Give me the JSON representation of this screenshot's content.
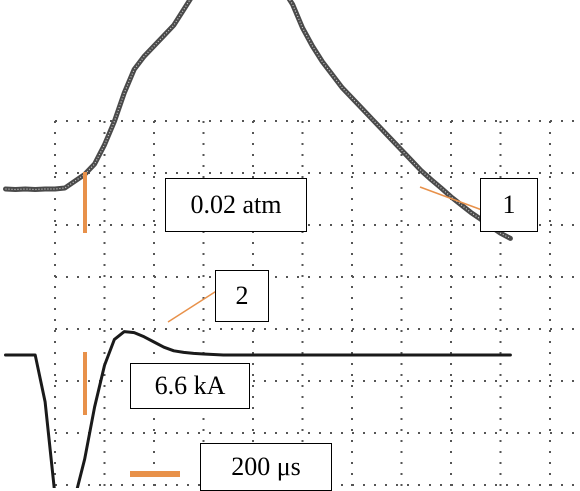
{
  "chart_data": {
    "type": "line",
    "title": "",
    "xlabel": "",
    "ylabel": "",
    "grid": true,
    "grid_style": "dotted",
    "x_divisions": 10,
    "y_divisions": 7,
    "x": [
      -1.0,
      -0.8,
      -0.6,
      -0.4,
      -0.2,
      0.0,
      0.2,
      0.4,
      0.6,
      0.8,
      1.0,
      1.2,
      1.4,
      1.6,
      1.8,
      2.0,
      2.2,
      2.4,
      2.6,
      2.8,
      3.0,
      3.2,
      3.4,
      3.6,
      3.8,
      4.0,
      4.2,
      4.4,
      4.6,
      4.8,
      5.0,
      5.2,
      5.4,
      5.6,
      5.8,
      6.0,
      6.2,
      6.4,
      6.6,
      6.8,
      7.0,
      7.2,
      7.4,
      7.6,
      7.8,
      8.0,
      8.2,
      8.4,
      8.6,
      8.8,
      9.0,
      9.2
    ],
    "series": [
      {
        "id": "1",
        "values": [
          1.0,
          0.99,
          1.0,
          0.99,
          1.0,
          1.0,
          1.02,
          1.15,
          1.28,
          1.48,
          1.85,
          2.3,
          2.85,
          3.3,
          3.55,
          3.75,
          3.95,
          4.15,
          4.45,
          4.75,
          5.1,
          5.55,
          5.3,
          4.95,
          5.05,
          5.25,
          5.1,
          5.05,
          4.85,
          4.55,
          4.1,
          3.75,
          3.45,
          3.2,
          2.95,
          2.75,
          2.55,
          2.35,
          2.15,
          1.95,
          1.75,
          1.55,
          1.35,
          1.18,
          1.02,
          0.85,
          0.7,
          0.55,
          0.42,
          0.28,
          0.15,
          0.05
        ],
        "color": "#4a4a4a"
      },
      {
        "id": "2",
        "values": [
          0.0,
          0.0,
          0.0,
          0.0,
          -0.9,
          -2.7,
          -3.05,
          -2.75,
          -2.0,
          -1.0,
          -0.2,
          0.3,
          0.45,
          0.43,
          0.35,
          0.25,
          0.15,
          0.08,
          0.05,
          0.03,
          0.02,
          0.01,
          0.0,
          0.0,
          0.0,
          0.0,
          0.0,
          0.0,
          0.0,
          0.0,
          0.0,
          0.0,
          0.0,
          0.0,
          0.0,
          0.0,
          0.0,
          0.0,
          0.0,
          0.0,
          0.0,
          0.0,
          0.0,
          0.0,
          0.0,
          0.0,
          0.0,
          0.0,
          0.0,
          0.0,
          0.0,
          0.0
        ],
        "color": "#1a1a1a"
      }
    ],
    "scale_markers": [
      {
        "label": "0.02 atm",
        "orientation": "vertical",
        "color": "#e8914a"
      },
      {
        "label": "6.6 kA",
        "orientation": "vertical",
        "color": "#e8914a"
      },
      {
        "label": "200 μs",
        "orientation": "horizontal",
        "color": "#e8914a"
      }
    ],
    "annotations": [
      "1",
      "2"
    ]
  }
}
